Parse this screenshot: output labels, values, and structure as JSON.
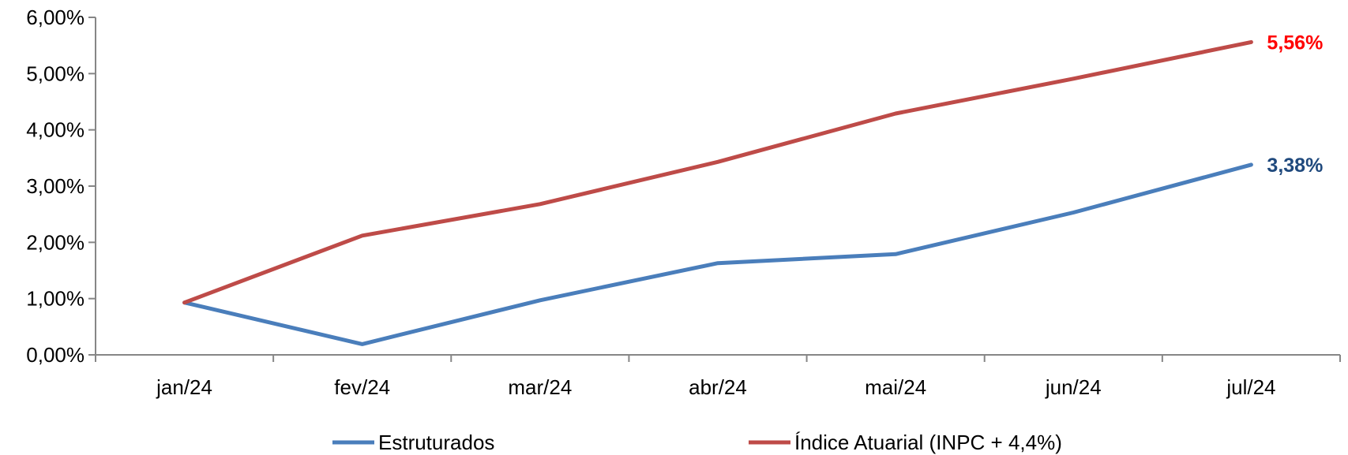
{
  "chart_data": {
    "type": "line",
    "categories": [
      "jan/24",
      "fev/24",
      "mar/24",
      "abr/24",
      "mai/24",
      "jun/24",
      "jul/24"
    ],
    "ylim": [
      0,
      6
    ],
    "yticks": [
      "0,00%",
      "1,00%",
      "2,00%",
      "3,00%",
      "4,00%",
      "5,00%",
      "6,00%"
    ],
    "series": [
      {
        "name": "Estruturados",
        "color": "#4a7ebb",
        "values": [
          0.93,
          0.19,
          0.97,
          1.63,
          1.79,
          2.53,
          3.38
        ],
        "end_label": "3,38%",
        "end_label_color": "#1f497d"
      },
      {
        "name": "Índice Atuarial (INPC + 4,4%)",
        "color": "#be4b48",
        "values": [
          0.93,
          2.12,
          2.68,
          3.43,
          4.29,
          4.91,
          5.56
        ],
        "end_label": "5,56%",
        "end_label_color": "#ff0000"
      }
    ],
    "grid": false,
    "legend_position": "bottom"
  }
}
